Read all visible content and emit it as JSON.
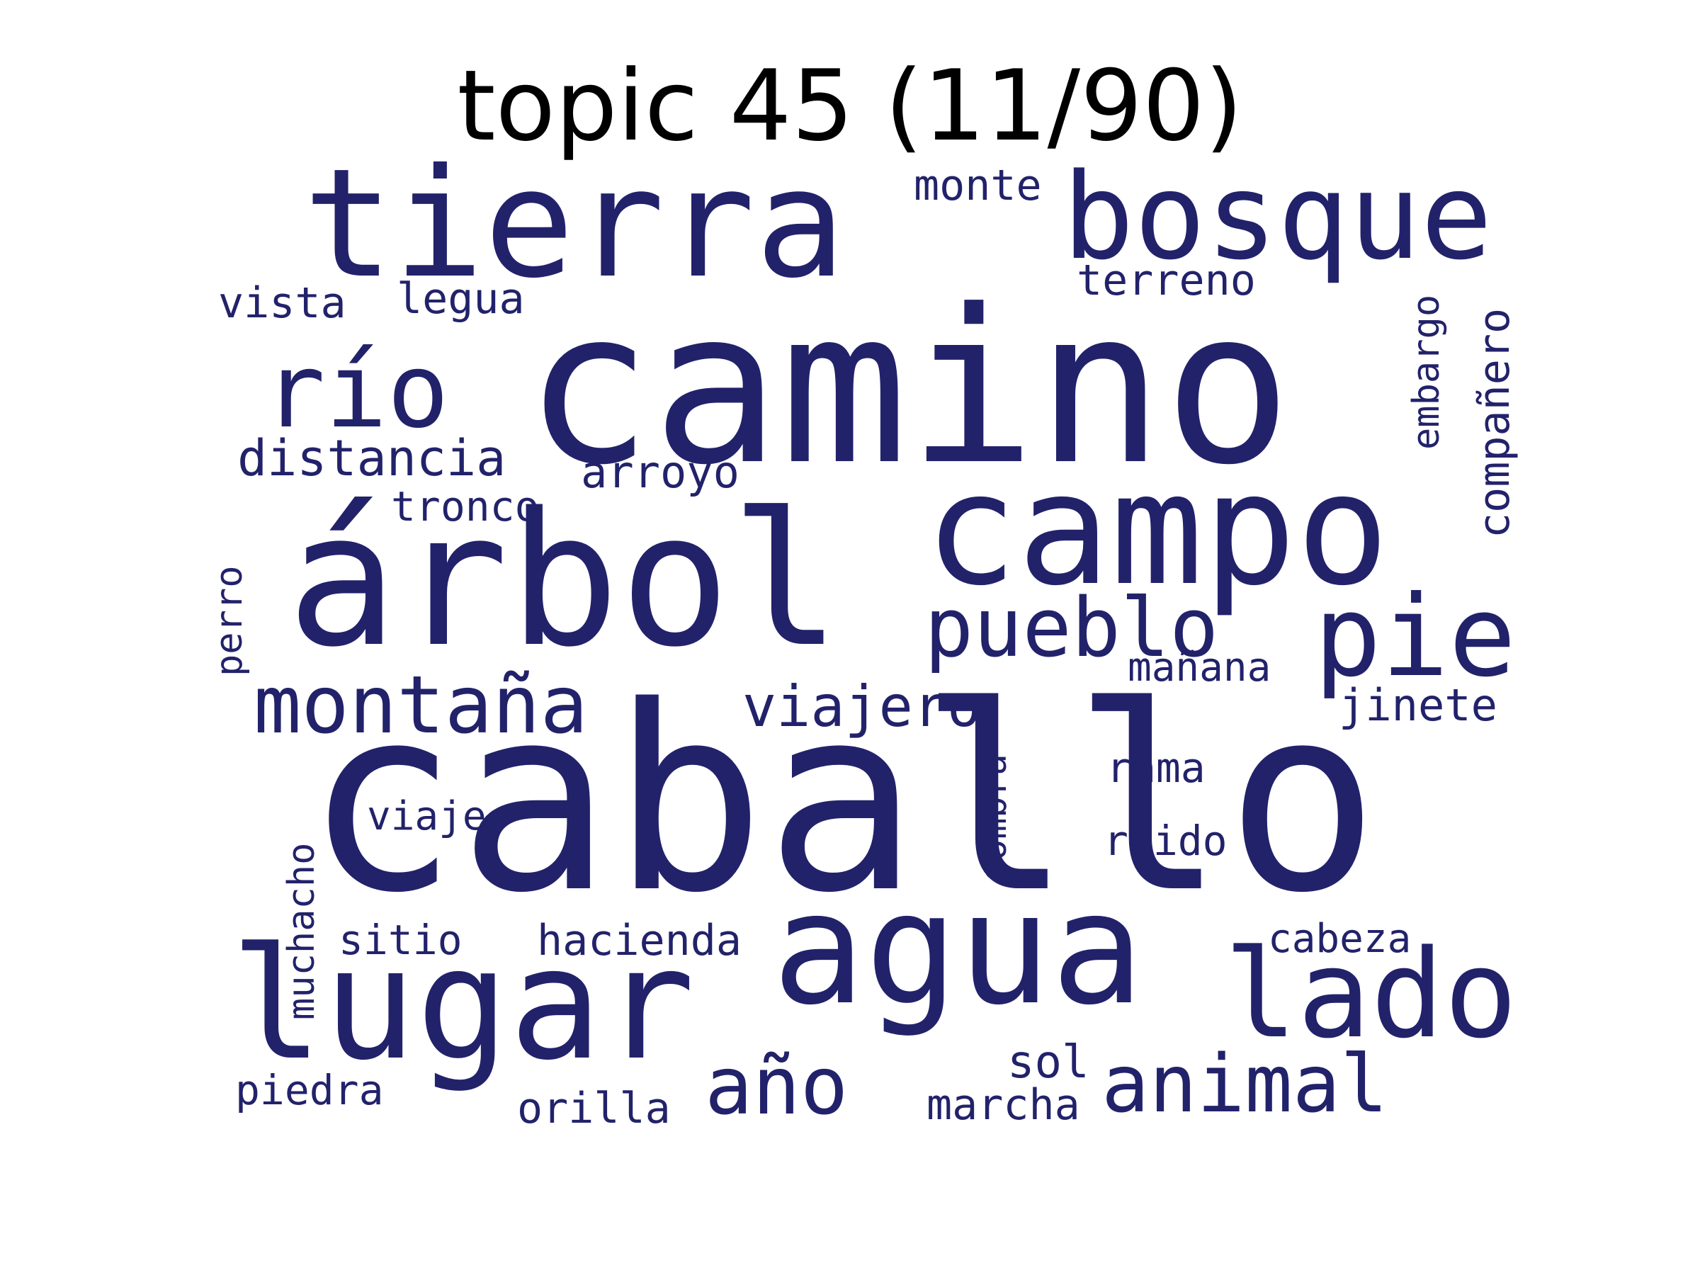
{
  "title": "topic 45 (11/90)",
  "colors": {
    "word": "#22226b",
    "background": "#ffffff"
  },
  "words": {
    "caballo": "caballo",
    "camino": "camino",
    "arbol": "árbol",
    "campo": "campo",
    "tierra": "tierra",
    "agua": "agua",
    "lugar": "lugar",
    "bosque": "bosque",
    "lado": "lado",
    "pie": "pie",
    "rio": "río",
    "pueblo": "pueblo",
    "montana": "montaña",
    "animal": "animal",
    "ano": "año",
    "viajero": "viajero",
    "distancia": "distancia",
    "companero": "compañero",
    "embargo": "embargo",
    "vista": "vista",
    "legua": "legua",
    "monte": "monte",
    "terreno": "terreno",
    "arroyo": "arroyo",
    "tronco": "tronco",
    "perro": "perro",
    "manana": "mañana",
    "jinete": "jinete",
    "rama": "rama",
    "sombra": "sombra",
    "viaje": "viaje",
    "ruido": "ruido",
    "muchacho": "muchacho",
    "sitio": "sitio",
    "hacienda": "hacienda",
    "cabeza": "cabeza",
    "sol": "sol",
    "piedra": "piedra",
    "orilla": "orilla",
    "marcha": "marcha"
  }
}
